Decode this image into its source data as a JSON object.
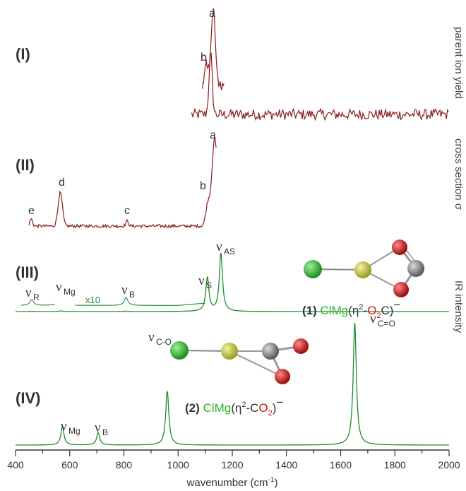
{
  "colors": {
    "experiment": "#8B1A1A",
    "theory": "#1E8C2E",
    "chlorine": "#2DB52D",
    "magnesium": "#C8C832",
    "carbon": "#7A7F84",
    "oxygen": "#D01818",
    "text": "#333333"
  },
  "chart_data": {
    "type": "line",
    "xlabel": "wavenumber (cm",
    "xlabel_sup": "-1",
    "xlabel_close": ")",
    "xlim": [
      400,
      2000
    ],
    "xticks": [
      "400",
      "600",
      "800",
      "1000",
      "1200",
      "1400",
      "1600",
      "1800",
      "2000"
    ],
    "right_labels": [
      "parent ion yield",
      "cross section σ",
      "IR intensity"
    ],
    "panels": [
      {
        "label": "(I)",
        "type": "experimental",
        "series": [
          {
            "x_range": [
              1050,
              2000
            ],
            "baseline_noise": true,
            "peaks": [
              {
                "x": 1120,
                "height": 0.9,
                "width": 6
              }
            ]
          },
          {
            "x_range": [
              1090,
              1170
            ],
            "baseline_noise": true,
            "peaks": [
              {
                "x": 1130,
                "height": 1.0,
                "width": 8
              },
              {
                "x": 1105,
                "height": 0.3,
                "width": 6
              }
            ]
          }
        ],
        "peak_labels": [
          {
            "text": "a",
            "x": 1130
          },
          {
            "text": "b",
            "x": 1110
          }
        ]
      },
      {
        "label": "(II)",
        "type": "experimental",
        "x_range": [
          450,
          1140
        ],
        "peaks": [
          {
            "x": 1135,
            "height": 1.0,
            "width": 10
          },
          {
            "x": 1110,
            "height": 0.25,
            "width": 8
          },
          {
            "x": 565,
            "height": 0.38,
            "width": 8
          },
          {
            "x": 812,
            "height": 0.06,
            "width": 5
          },
          {
            "x": 458,
            "height": 0.08,
            "width": 5
          }
        ],
        "peak_labels": [
          {
            "text": "a",
            "x": 1135
          },
          {
            "text": "b",
            "x": 1106
          },
          {
            "text": "c",
            "x": 812
          },
          {
            "text": "d",
            "x": 568
          },
          {
            "text": "e",
            "x": 455
          }
        ]
      },
      {
        "label": "(III)",
        "type": "calculated",
        "peaks": [
          {
            "x": 1158,
            "height": 1.0
          },
          {
            "x": 1108,
            "height": 0.58
          },
          {
            "x": 568,
            "height": 0.2,
            "scaled": true
          },
          {
            "x": 808,
            "height": 0.14,
            "scaled": true
          },
          {
            "x": 460,
            "height": 0.1,
            "scaled": true
          }
        ],
        "scale_note": "x10",
        "modes": [
          {
            "symbol": "ν",
            "sub": "R",
            "x": 455
          },
          {
            "symbol": "ν",
            "sub": "Mg",
            "x": 565
          },
          {
            "symbol": "ν",
            "sub": "B",
            "x": 808
          },
          {
            "symbol": "ν",
            "sub": "S",
            "x": 1105
          },
          {
            "symbol": "ν",
            "sub": "AS",
            "x": 1158
          }
        ],
        "molecule": {
          "number": "(1)",
          "formula_cl_mg": "ClMg",
          "formula_open": "(η",
          "formula_sup": "2",
          "formula_dash": "-",
          "formula_o": "O",
          "formula_o_sub": "2",
          "formula_c": "C)",
          "formula_charge": "−"
        }
      },
      {
        "label": "(IV)",
        "type": "calculated",
        "peaks": [
          {
            "x": 1652,
            "height": 1.0
          },
          {
            "x": 960,
            "height": 0.44
          },
          {
            "x": 573,
            "height": 0.15
          },
          {
            "x": 705,
            "height": 0.1
          }
        ],
        "modes": [
          {
            "symbol": "ν",
            "sub": "Mg",
            "x": 570
          },
          {
            "symbol": "ν",
            "sub": "B",
            "x": 705
          },
          {
            "symbol": "ν",
            "sub": "C-O",
            "x": 960
          },
          {
            "symbol": "ν",
            "sub": "C=O",
            "x": 1652
          }
        ],
        "molecule": {
          "number": "(2)",
          "formula_cl_mg": "ClMg",
          "formula_open": "(η",
          "formula_sup": "2",
          "formula_dash": "-",
          "formula_c": "C",
          "formula_o": "O",
          "formula_o_sub": "2",
          "formula_close": ")",
          "formula_charge": "−"
        }
      }
    ]
  }
}
